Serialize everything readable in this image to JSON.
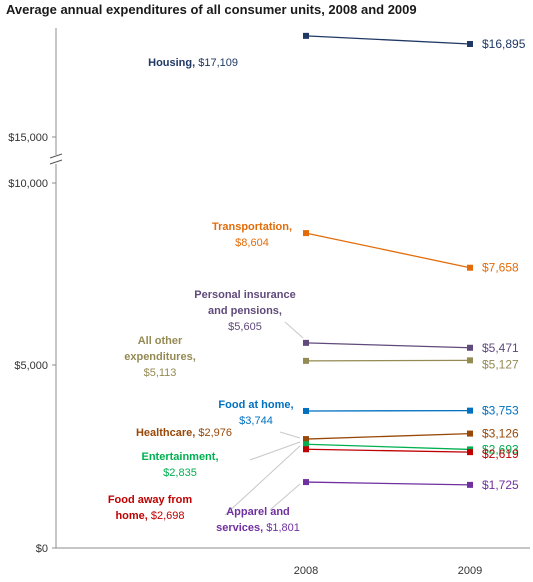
{
  "chart_data": {
    "type": "line",
    "title": "Average annual expenditures of all consumer units, 2008 and 2009",
    "xlabel": "",
    "ylabel": "",
    "categories": [
      "2008",
      "2009"
    ],
    "y_axis_break": true,
    "y_ticks": [
      "$0",
      "$5,000",
      "$10,000",
      "$15,000"
    ],
    "grid": false,
    "series": [
      {
        "name": "Housing",
        "values": [
          17109,
          16895
        ],
        "color": "#1f3864",
        "label_2008": "$17,109",
        "label_2009": "$16,895"
      },
      {
        "name": "Transportation",
        "values": [
          8604,
          7658
        ],
        "color": "#e36c0a",
        "label_2008": "$8,604",
        "label_2009": "$7,658"
      },
      {
        "name": "Personal insurance and pensions",
        "values": [
          5605,
          5471
        ],
        "color": "#604a7b",
        "label_2008": "$5,605",
        "label_2009": "$5,471"
      },
      {
        "name": "All other expenditures",
        "values": [
          5113,
          5127
        ],
        "color": "#948a54",
        "label_2008": "$5,113",
        "label_2009": "$5,127"
      },
      {
        "name": "Food at home",
        "values": [
          3744,
          3753
        ],
        "color": "#0070c0",
        "label_2008": "$3,744",
        "label_2009": "$3,753"
      },
      {
        "name": "Healthcare",
        "values": [
          2976,
          3126
        ],
        "color": "#984807",
        "label_2008": "$2,976",
        "label_2009": "$3,126"
      },
      {
        "name": "Entertainment",
        "values": [
          2835,
          2693
        ],
        "color": "#00b050",
        "label_2008": "$2,835",
        "label_2009": "$2,693"
      },
      {
        "name": "Food away from home",
        "values": [
          2698,
          2619
        ],
        "color": "#c00000",
        "label_2008": "$2,698",
        "label_2009": "$2,619"
      },
      {
        "name": "Apparel and services",
        "values": [
          1801,
          1725
        ],
        "color": "#7030a0",
        "label_2008": "$1,801",
        "label_2009": "$1,725"
      }
    ]
  }
}
